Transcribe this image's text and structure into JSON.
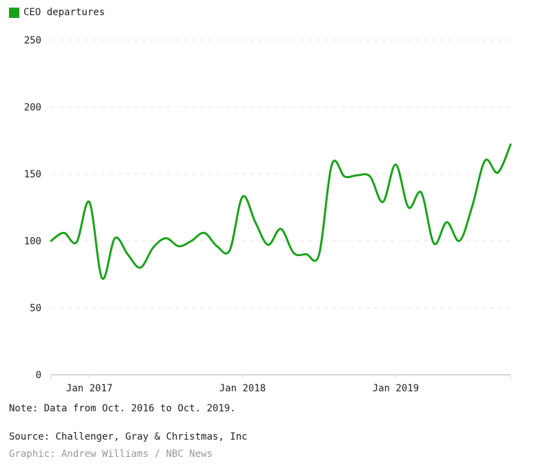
{
  "legend": {
    "label": "CEO departures",
    "color": "#1aa11a"
  },
  "notes": {
    "note": "Note: Data from Oct. 2016 to Oct. 2019.",
    "source": "Source: Challenger, Gray & Christmas, Inc",
    "credit": "Graphic: Andrew Williams / NBC News"
  },
  "chart_data": {
    "type": "line",
    "title": "",
    "xlabel": "",
    "ylabel": "",
    "ylim": [
      0,
      250
    ],
    "yticks": [
      0,
      50,
      100,
      150,
      200,
      250
    ],
    "xtick_labels": [
      "Jan 2017",
      "Jan 2018",
      "Jan 2019"
    ],
    "grid": "horizontal dashed",
    "legend_position": "top-left",
    "x": [
      "2016-10",
      "2016-11",
      "2016-12",
      "2017-01",
      "2017-02",
      "2017-03",
      "2017-04",
      "2017-05",
      "2017-06",
      "2017-07",
      "2017-08",
      "2017-09",
      "2017-10",
      "2017-11",
      "2017-12",
      "2018-01",
      "2018-02",
      "2018-03",
      "2018-04",
      "2018-05",
      "2018-06",
      "2018-07",
      "2018-08",
      "2018-09",
      "2018-10",
      "2018-11",
      "2018-12",
      "2019-01",
      "2019-02",
      "2019-03",
      "2019-04",
      "2019-05",
      "2019-06",
      "2019-07",
      "2019-08",
      "2019-09",
      "2019-10"
    ],
    "series": [
      {
        "name": "CEO departures",
        "color": "#1aa11a",
        "values": [
          100,
          106,
          99,
          129,
          72,
          102,
          90,
          80,
          95,
          102,
          96,
          100,
          106,
          96,
          93,
          133,
          114,
          97,
          109,
          91,
          90,
          90,
          157,
          148,
          149,
          148,
          129,
          157,
          125,
          136,
          98,
          114,
          100,
          126,
          160,
          151,
          172
        ]
      }
    ]
  }
}
